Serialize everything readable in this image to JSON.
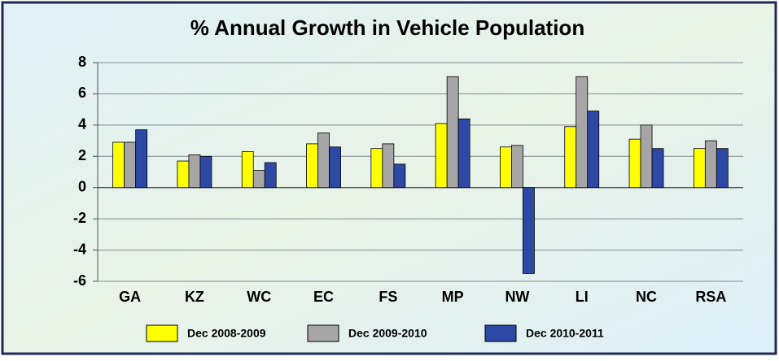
{
  "chart_data": {
    "type": "bar",
    "title": "% Annual Growth in Vehicle Population",
    "categories": [
      "GA",
      "KZ",
      "WC",
      "EC",
      "FS",
      "MP",
      "NW",
      "LI",
      "NC",
      "RSA"
    ],
    "series": [
      {
        "name": "Dec 2008-2009",
        "color": "#ffff00",
        "values": [
          2.9,
          1.7,
          2.3,
          2.8,
          2.5,
          4.1,
          2.6,
          3.9,
          3.1,
          2.5
        ]
      },
      {
        "name": "Dec 2009-2010",
        "color": "#a6a6a6",
        "values": [
          2.9,
          2.1,
          1.1,
          3.5,
          2.8,
          7.1,
          2.7,
          7.1,
          4.0,
          3.0
        ]
      },
      {
        "name": "Dec 2010-2011",
        "color": "#2d49a6",
        "values": [
          3.7,
          2.0,
          1.6,
          2.6,
          1.5,
          4.4,
          -5.5,
          4.9,
          2.5,
          2.5
        ]
      }
    ],
    "ylim": [
      -6,
      8
    ],
    "yticks": [
      -6,
      -4,
      -2,
      0,
      2,
      4,
      6,
      8
    ],
    "grid": true,
    "legend": "bottom"
  }
}
